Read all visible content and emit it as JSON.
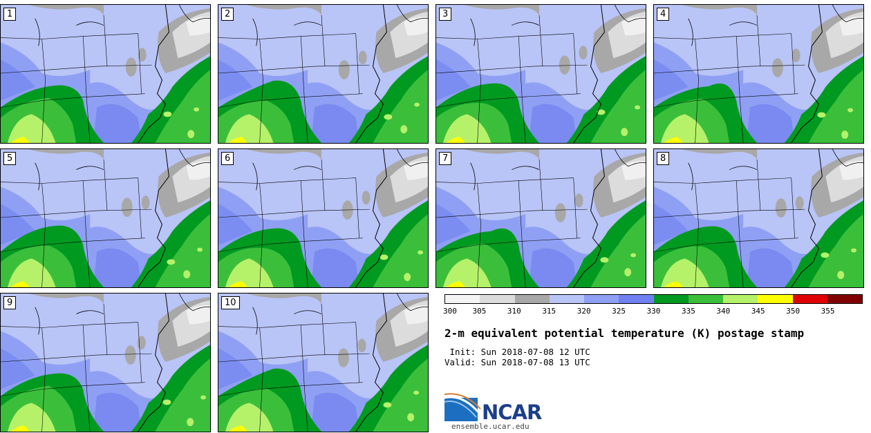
{
  "panels": [
    {
      "label": "1"
    },
    {
      "label": "2"
    },
    {
      "label": "3"
    },
    {
      "label": "4"
    },
    {
      "label": "5"
    },
    {
      "label": "6"
    },
    {
      "label": "7"
    },
    {
      "label": "8"
    },
    {
      "label": "9"
    },
    {
      "label": "10"
    }
  ],
  "colorbar": {
    "ticks": [
      "300",
      "305",
      "310",
      "315",
      "320",
      "325",
      "330",
      "335",
      "340",
      "345",
      "350",
      "355"
    ],
    "colors": [
      "#f5f5f5",
      "#dcdcdc",
      "#a8a8a8",
      "#b9c4f7",
      "#8fa0f4",
      "#7080f0",
      "#009a20",
      "#3bbf3b",
      "#b5f26a",
      "#ffff00",
      "#e00000",
      "#800000"
    ]
  },
  "title": "2-m equivalent potential temperature (K) postage stamp",
  "init": " Init: Sun 2018-07-08 12 UTC",
  "valid": "Valid: Sun 2018-07-08 13 UTC",
  "logo": {
    "text": "NCAR",
    "url": "ensemble.ucar.edu"
  },
  "colors": {
    "land_light": "#b9c4f7",
    "land_mid": "#8fa0f4",
    "land_dark": "#7080f0",
    "ocean_green": "#009a20",
    "green": "#3bbf3b",
    "light_green": "#b5f26a",
    "yellow": "#ffff00",
    "gray": "#a8a8a8",
    "light_gray": "#dcdcdc",
    "white_gray": "#f0f0f0",
    "logo_blue": "#1c3f8a"
  }
}
